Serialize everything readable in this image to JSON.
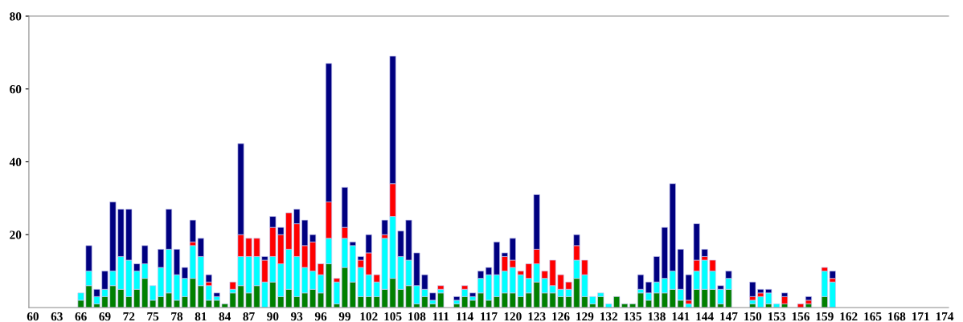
{
  "chart_data": {
    "type": "bar",
    "stacked": true,
    "grid": false,
    "legend": false,
    "categories": [
      "60",
      null,
      null,
      "63",
      null,
      null,
      "66",
      null,
      null,
      "69",
      null,
      null,
      "72",
      null,
      null,
      "75",
      null,
      null,
      "78",
      null,
      null,
      "81",
      null,
      null,
      "84",
      null,
      null,
      "87",
      null,
      null,
      "90",
      null,
      null,
      "93",
      null,
      null,
      "96",
      null,
      null,
      "99",
      null,
      null,
      "102",
      null,
      null,
      "105",
      null,
      null,
      "108",
      null,
      null,
      "111",
      null,
      null,
      "114",
      null,
      null,
      "117",
      null,
      null,
      "120",
      null,
      null,
      "123",
      null,
      null,
      "126",
      null,
      null,
      "129",
      null,
      null,
      "132",
      null,
      null,
      "135",
      null,
      null,
      "138",
      null,
      null,
      "141",
      null,
      null,
      "144",
      null,
      null,
      "147",
      null,
      null,
      "150",
      null,
      null,
      "153",
      null,
      null,
      "156",
      null,
      null,
      "159",
      null,
      null,
      "162",
      null,
      null,
      "165",
      null,
      null,
      "168",
      null,
      null,
      "171",
      null,
      null,
      "174"
    ],
    "ylim": [
      0,
      80
    ],
    "yticks": [
      20,
      40,
      60,
      80
    ],
    "series": [
      {
        "color": "#008000",
        "values": [
          null,
          null,
          null,
          null,
          null,
          null,
          2,
          6,
          1,
          3,
          6,
          5,
          3,
          5,
          8,
          2,
          3,
          4,
          2,
          3,
          8,
          6,
          2,
          2,
          1,
          4,
          6,
          4,
          6,
          null,
          7,
          3,
          5,
          3,
          4,
          5,
          4,
          12,
          1,
          11,
          7,
          3,
          3,
          3,
          5,
          8,
          5,
          6,
          1,
          3,
          1,
          4,
          null,
          1,
          3,
          2,
          4,
          2,
          3,
          4,
          4,
          3,
          4,
          7,
          4,
          4,
          3,
          3,
          8,
          3,
          1,
          3,
          null,
          3,
          1,
          1,
          4,
          2,
          4,
          4,
          5,
          2,
          null,
          5,
          5,
          5,
          1,
          5,
          null,
          null,
          1,
          null,
          1,
          null,
          1,
          null,
          null,
          1,
          null,
          3,
          null,
          null,
          null,
          null,
          null,
          null,
          null,
          null,
          null,
          null,
          null,
          null,
          null,
          null,
          null
        ]
      },
      {
        "color": "#00ffff",
        "values": [
          null,
          null,
          null,
          null,
          null,
          null,
          2,
          4,
          2,
          2,
          4,
          9,
          10,
          5,
          4,
          4,
          8,
          12,
          7,
          5,
          9,
          8,
          4,
          1,
          null,
          1,
          8,
          10,
          8,
          7,
          7,
          9,
          11,
          11,
          7,
          5,
          5,
          7,
          6,
          8,
          10,
          8,
          6,
          4,
          14,
          17,
          9,
          7,
          5,
          2,
          1,
          1,
          null,
          1,
          2,
          1,
          4,
          7,
          6,
          6,
          7,
          6,
          4,
          5,
          4,
          2,
          2,
          2,
          5,
          6,
          2,
          1,
          1,
          null,
          null,
          null,
          1,
          2,
          3,
          4,
          5,
          3,
          1,
          5,
          8,
          5,
          4,
          3,
          null,
          null,
          1,
          3,
          3,
          1,
          null,
          null,
          null,
          null,
          null,
          7,
          7,
          null,
          null,
          null,
          null,
          null,
          null,
          null,
          null,
          null,
          null,
          null,
          null,
          null,
          null
        ]
      },
      {
        "color": "#ff0000",
        "values": [
          null,
          null,
          null,
          null,
          null,
          null,
          null,
          null,
          null,
          null,
          null,
          null,
          null,
          null,
          null,
          null,
          null,
          null,
          null,
          null,
          1,
          null,
          1,
          null,
          null,
          2,
          6,
          5,
          5,
          6,
          8,
          8,
          10,
          9,
          6,
          8,
          3,
          10,
          1,
          3,
          null,
          2,
          6,
          2,
          1,
          9,
          null,
          null,
          null,
          null,
          null,
          1,
          null,
          null,
          1,
          null,
          null,
          null,
          null,
          4,
          2,
          1,
          4,
          4,
          2,
          7,
          4,
          2,
          4,
          4,
          null,
          null,
          null,
          null,
          null,
          null,
          null,
          null,
          null,
          null,
          null,
          null,
          1,
          3,
          1,
          3,
          null,
          null,
          null,
          null,
          1,
          1,
          null,
          null,
          2,
          null,
          1,
          1,
          null,
          1,
          1,
          null,
          null,
          null,
          null,
          null,
          null,
          null,
          null,
          null,
          null,
          null,
          null,
          null,
          null
        ]
      },
      {
        "color": "#000080",
        "values": [
          null,
          null,
          null,
          null,
          null,
          null,
          null,
          7,
          2,
          5,
          19,
          13,
          14,
          2,
          5,
          null,
          5,
          11,
          7,
          3,
          6,
          5,
          2,
          1,
          null,
          null,
          25,
          null,
          null,
          1,
          3,
          2,
          null,
          4,
          7,
          2,
          null,
          38,
          null,
          11,
          1,
          1,
          5,
          null,
          4,
          35,
          7,
          11,
          9,
          4,
          2,
          null,
          null,
          1,
          null,
          1,
          2,
          2,
          9,
          1,
          6,
          null,
          null,
          15,
          null,
          null,
          null,
          null,
          3,
          null,
          null,
          null,
          null,
          null,
          null,
          null,
          4,
          3,
          7,
          14,
          24,
          11,
          7,
          10,
          2,
          null,
          1,
          2,
          null,
          null,
          4,
          1,
          1,
          null,
          1,
          null,
          null,
          1,
          null,
          null,
          2,
          null,
          null,
          null,
          null,
          null,
          null,
          null,
          null,
          null,
          null,
          null,
          null,
          null,
          null
        ]
      }
    ]
  }
}
